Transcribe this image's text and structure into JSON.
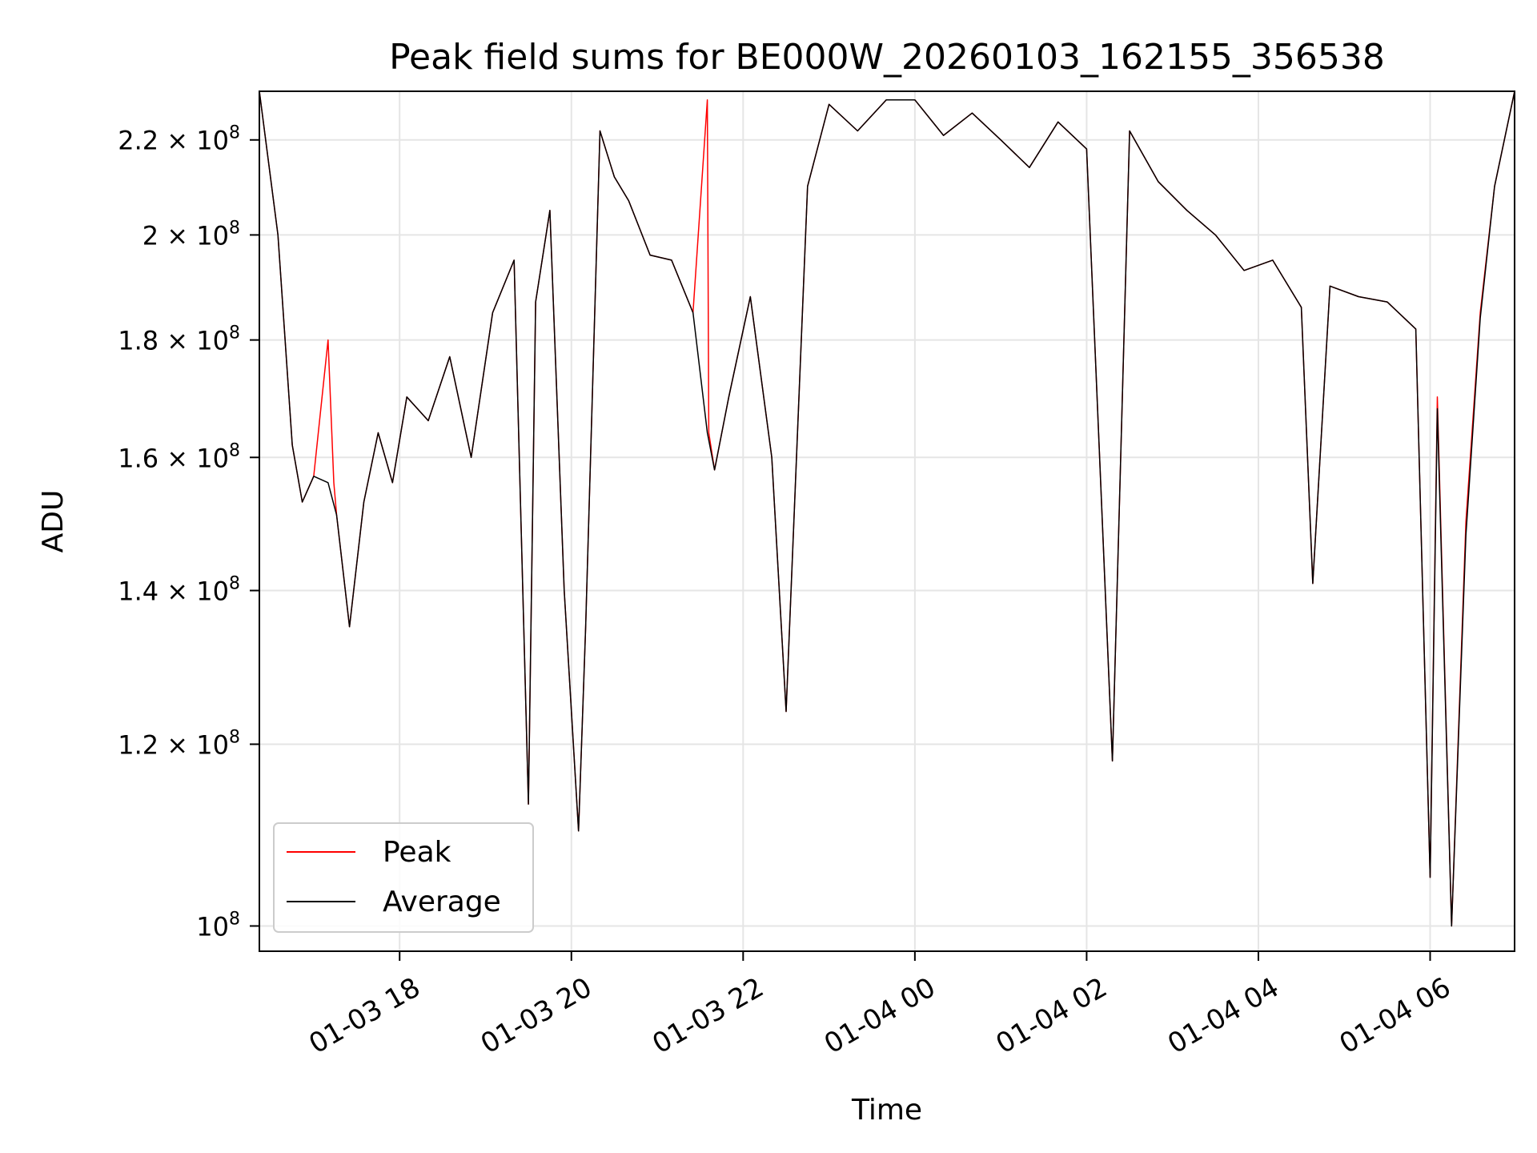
{
  "chart_data": {
    "type": "line",
    "title": "Peak field sums for BE000W_20260103_162155_356538",
    "xlabel": "Time",
    "ylabel": "ADU",
    "yscale": "log",
    "ylim": [
      97500000,
      231000000
    ],
    "xlim": [
      "2026-01-03 16:22",
      "2026-01-04 06:59"
    ],
    "grid": true,
    "legend_position": "lower-left",
    "x_ticks": [
      {
        "value": "2026-01-03 18:00",
        "label": "01-03 18"
      },
      {
        "value": "2026-01-03 20:00",
        "label": "01-03 20"
      },
      {
        "value": "2026-01-03 22:00",
        "label": "01-03 22"
      },
      {
        "value": "2026-01-04 00:00",
        "label": "01-04 00"
      },
      {
        "value": "2026-01-04 02:00",
        "label": "01-04 02"
      },
      {
        "value": "2026-01-04 04:00",
        "label": "01-04 04"
      },
      {
        "value": "2026-01-04 06:00",
        "label": "01-04 06"
      }
    ],
    "y_ticks": [
      {
        "value": 100000000,
        "mantissa": "10",
        "exponent": "8"
      },
      {
        "value": 120000000,
        "mantissa": "1.2 × 10",
        "exponent": "8"
      },
      {
        "value": 140000000,
        "mantissa": "1.4 × 10",
        "exponent": "8"
      },
      {
        "value": 160000000,
        "mantissa": "1.6 × 10",
        "exponent": "8"
      },
      {
        "value": 180000000,
        "mantissa": "1.8 × 10",
        "exponent": "8"
      },
      {
        "value": 200000000,
        "mantissa": "2 × 10",
        "exponent": "8"
      },
      {
        "value": 220000000,
        "mantissa": "2.2 × 10",
        "exponent": "8"
      }
    ],
    "series": [
      {
        "name": "Peak",
        "color": "#ff0000",
        "x": [
          "2026-01-03 16:22",
          "2026-01-03 16:35",
          "2026-01-03 16:45",
          "2026-01-03 16:52",
          "2026-01-03 17:00",
          "2026-01-03 17:10",
          "2026-01-03 17:14",
          "2026-01-03 17:16",
          "2026-01-03 17:25",
          "2026-01-03 17:35",
          "2026-01-03 17:45",
          "2026-01-03 17:55",
          "2026-01-03 18:05",
          "2026-01-03 18:20",
          "2026-01-03 18:35",
          "2026-01-03 18:50",
          "2026-01-03 19:05",
          "2026-01-03 19:20",
          "2026-01-03 19:30",
          "2026-01-03 19:35",
          "2026-01-03 19:45",
          "2026-01-03 19:55",
          "2026-01-03 20:05",
          "2026-01-03 20:10",
          "2026-01-03 20:20",
          "2026-01-03 20:30",
          "2026-01-03 20:40",
          "2026-01-03 20:55",
          "2026-01-03 21:10",
          "2026-01-03 21:25",
          "2026-01-03 21:35",
          "2026-01-03 21:36",
          "2026-01-03 21:40",
          "2026-01-03 21:50",
          "2026-01-03 22:05",
          "2026-01-03 22:20",
          "2026-01-03 22:30",
          "2026-01-03 22:45",
          "2026-01-03 23:00",
          "2026-01-03 23:20",
          "2026-01-03 23:40",
          "2026-01-04 00:00",
          "2026-01-04 00:20",
          "2026-01-04 00:40",
          "2026-01-04 01:00",
          "2026-01-04 01:20",
          "2026-01-04 01:40",
          "2026-01-04 02:00",
          "2026-01-04 02:18",
          "2026-01-04 02:30",
          "2026-01-04 02:50",
          "2026-01-04 03:10",
          "2026-01-04 03:30",
          "2026-01-04 03:50",
          "2026-01-04 04:10",
          "2026-01-04 04:30",
          "2026-01-04 04:38",
          "2026-01-04 04:50",
          "2026-01-04 05:10",
          "2026-01-04 05:30",
          "2026-01-04 05:50",
          "2026-01-04 06:00",
          "2026-01-04 06:05",
          "2026-01-04 06:15",
          "2026-01-04 06:25",
          "2026-01-04 06:35",
          "2026-01-04 06:45",
          "2026-01-04 06:59"
        ],
        "y": [
          231000000,
          200000000,
          162000000,
          153000000,
          157000000,
          180000000,
          156000000,
          151000000,
          135000000,
          153000000,
          164000000,
          156000000,
          170000000,
          166000000,
          177000000,
          160000000,
          185000000,
          195000000,
          113000000,
          187000000,
          205000000,
          140000000,
          110000000,
          135000000,
          222000000,
          212000000,
          207000000,
          196000000,
          195000000,
          185000000,
          229000000,
          164000000,
          158000000,
          170000000,
          188000000,
          160000000,
          124000000,
          210000000,
          228000000,
          222000000,
          229000000,
          229000000,
          221000000,
          226000000,
          220000000,
          214000000,
          224000000,
          218000000,
          118000000,
          222000000,
          211000000,
          205000000,
          200000000,
          193000000,
          195000000,
          186000000,
          141000000,
          190000000,
          188000000,
          187000000,
          182000000,
          105000000,
          170000000,
          100000000,
          150000000,
          185000000,
          210000000,
          231000000
        ]
      },
      {
        "name": "Average",
        "color": "#000000",
        "x": [
          "2026-01-03 16:22",
          "2026-01-03 16:35",
          "2026-01-03 16:45",
          "2026-01-03 16:52",
          "2026-01-03 17:00",
          "2026-01-03 17:10",
          "2026-01-03 17:16",
          "2026-01-03 17:25",
          "2026-01-03 17:35",
          "2026-01-03 17:45",
          "2026-01-03 17:55",
          "2026-01-03 18:05",
          "2026-01-03 18:20",
          "2026-01-03 18:35",
          "2026-01-03 18:50",
          "2026-01-03 19:05",
          "2026-01-03 19:20",
          "2026-01-03 19:30",
          "2026-01-03 19:35",
          "2026-01-03 19:45",
          "2026-01-03 19:55",
          "2026-01-03 20:05",
          "2026-01-03 20:10",
          "2026-01-03 20:20",
          "2026-01-03 20:30",
          "2026-01-03 20:40",
          "2026-01-03 20:55",
          "2026-01-03 21:10",
          "2026-01-03 21:25",
          "2026-01-03 21:35",
          "2026-01-03 21:40",
          "2026-01-03 21:50",
          "2026-01-03 22:05",
          "2026-01-03 22:20",
          "2026-01-03 22:30",
          "2026-01-03 22:45",
          "2026-01-03 23:00",
          "2026-01-03 23:20",
          "2026-01-03 23:40",
          "2026-01-04 00:00",
          "2026-01-04 00:20",
          "2026-01-04 00:40",
          "2026-01-04 01:00",
          "2026-01-04 01:20",
          "2026-01-04 01:40",
          "2026-01-04 02:00",
          "2026-01-04 02:18",
          "2026-01-04 02:30",
          "2026-01-04 02:50",
          "2026-01-04 03:10",
          "2026-01-04 03:30",
          "2026-01-04 03:50",
          "2026-01-04 04:10",
          "2026-01-04 04:30",
          "2026-01-04 04:38",
          "2026-01-04 04:50",
          "2026-01-04 05:10",
          "2026-01-04 05:30",
          "2026-01-04 05:50",
          "2026-01-04 06:00",
          "2026-01-04 06:05",
          "2026-01-04 06:15",
          "2026-01-04 06:25",
          "2026-01-04 06:35",
          "2026-01-04 06:45",
          "2026-01-04 06:59"
        ],
        "y": [
          231000000,
          200000000,
          162000000,
          153000000,
          157000000,
          156000000,
          151000000,
          135000000,
          153000000,
          164000000,
          156000000,
          170000000,
          166000000,
          177000000,
          160000000,
          185000000,
          195000000,
          113000000,
          187000000,
          205000000,
          140000000,
          110000000,
          135000000,
          222000000,
          212000000,
          207000000,
          196000000,
          195000000,
          185000000,
          164000000,
          158000000,
          170000000,
          188000000,
          160000000,
          124000000,
          210000000,
          228000000,
          222000000,
          229000000,
          229000000,
          221000000,
          226000000,
          220000000,
          214000000,
          224000000,
          218000000,
          118000000,
          222000000,
          211000000,
          205000000,
          200000000,
          193000000,
          195000000,
          186000000,
          141000000,
          190000000,
          188000000,
          187000000,
          182000000,
          105000000,
          168000000,
          100000000,
          148000000,
          184000000,
          210000000,
          231000000
        ]
      }
    ]
  }
}
